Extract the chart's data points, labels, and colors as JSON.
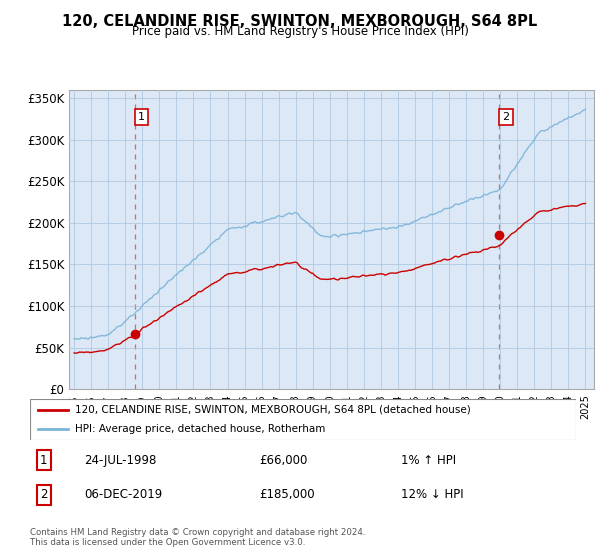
{
  "title": "120, CELANDINE RISE, SWINTON, MEXBOROUGH, S64 8PL",
  "subtitle": "Price paid vs. HM Land Registry's House Price Index (HPI)",
  "legend_line1": "120, CELANDINE RISE, SWINTON, MEXBOROUGH, S64 8PL (detached house)",
  "legend_line2": "HPI: Average price, detached house, Rotherham",
  "transaction1_date": "24-JUL-1998",
  "transaction1_price": "£66,000",
  "transaction1_hpi": "1% ↑ HPI",
  "transaction1_year": 1998.56,
  "transaction1_value": 66000,
  "transaction2_date": "06-DEC-2019",
  "transaction2_price": "£185,000",
  "transaction2_hpi": "12% ↓ HPI",
  "transaction2_year": 2019.93,
  "transaction2_value": 185000,
  "hpi_color": "#7ab4d8",
  "price_color": "#cc0000",
  "dot_color": "#cc0000",
  "background_color": "#ffffff",
  "plot_bg_color": "#dce8f5",
  "grid_color": "#b0c8e0",
  "yticks": [
    0,
    50000,
    100000,
    150000,
    200000,
    250000,
    300000,
    350000
  ],
  "ytick_labels": [
    "£0",
    "£50K",
    "£100K",
    "£150K",
    "£200K",
    "£250K",
    "£300K",
    "£350K"
  ],
  "footer": "Contains HM Land Registry data © Crown copyright and database right 2024.\nThis data is licensed under the Open Government Licence v3.0.",
  "xstart": 1995,
  "xend": 2025
}
